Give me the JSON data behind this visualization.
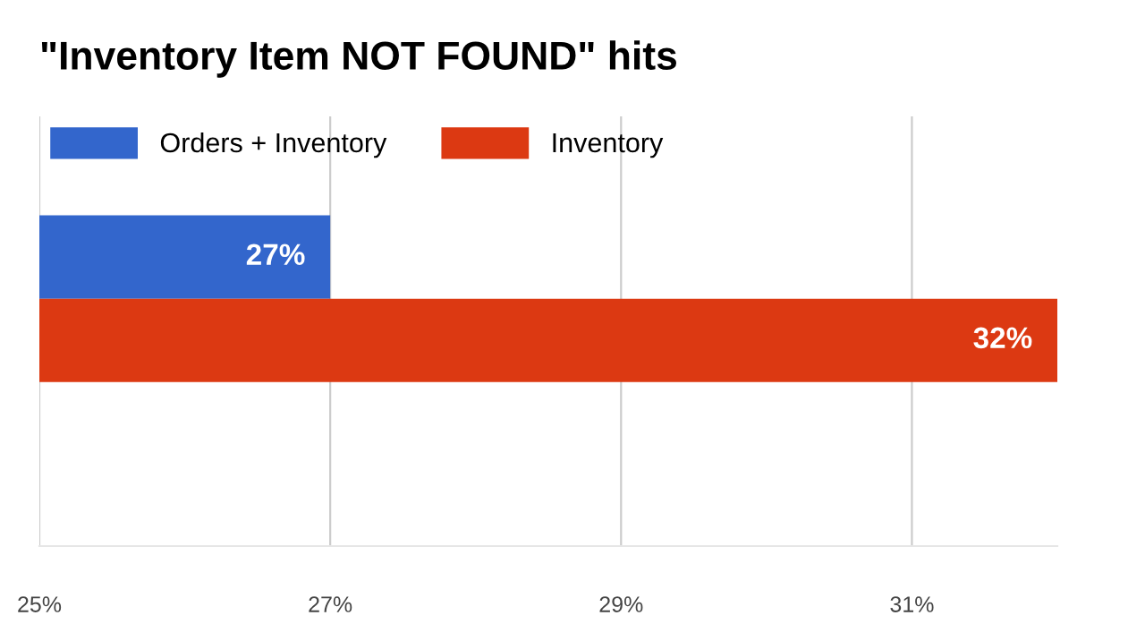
{
  "chart_data": {
    "type": "bar",
    "orientation": "horizontal",
    "title": "\"Inventory Item NOT FOUND\" hits",
    "categories": [
      null
    ],
    "series": [
      {
        "name": "Orders + Inventory",
        "color": "#3366cc",
        "values": [
          27
        ],
        "value_labels": [
          "27%"
        ]
      },
      {
        "name": "Inventory",
        "color": "#dc3912",
        "values": [
          32
        ],
        "value_labels": [
          "32%"
        ]
      }
    ],
    "xlim": [
      25,
      32
    ],
    "xticks": [
      {
        "value": 25,
        "label": "25%"
      },
      {
        "value": 27,
        "label": "27%"
      },
      {
        "value": 29,
        "label": "29%"
      },
      {
        "value": 31,
        "label": "31%"
      }
    ],
    "grid": "x",
    "legend": "top left"
  }
}
